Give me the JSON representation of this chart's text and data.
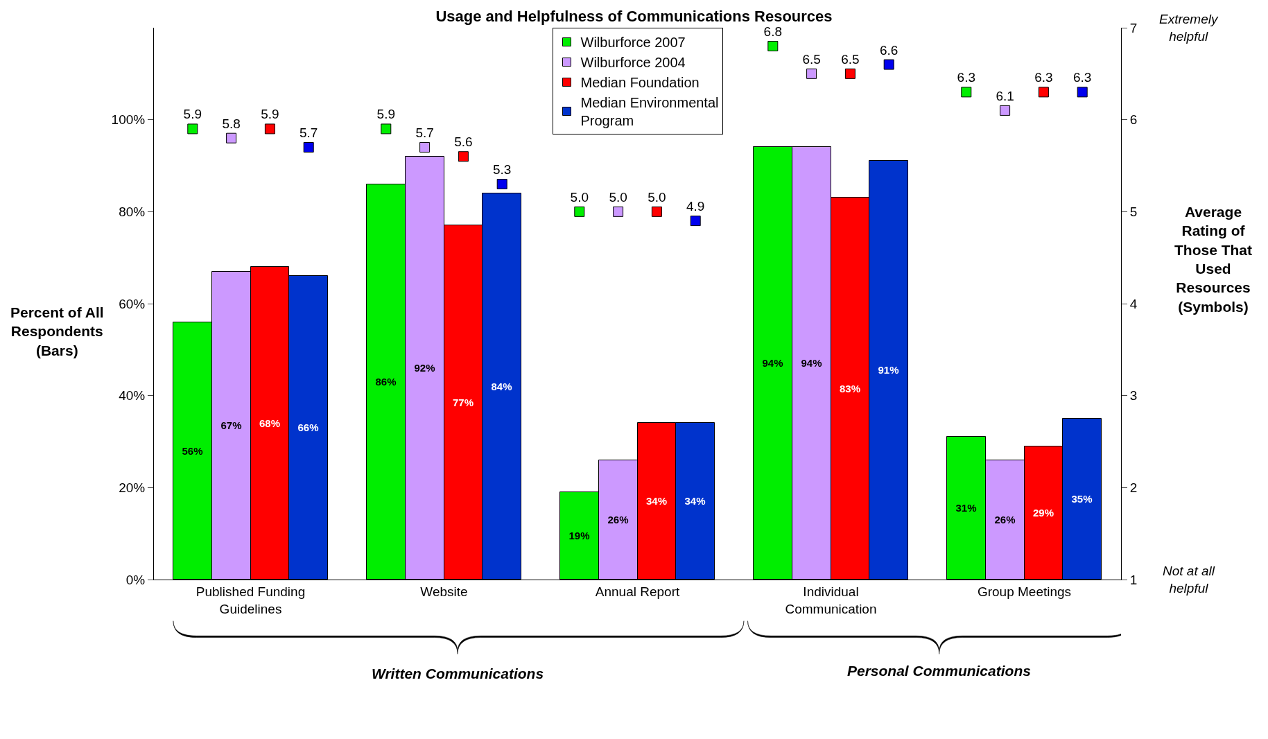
{
  "chart_data": {
    "type": "bar",
    "title": "Usage and Helpfulness of Communications Resources",
    "categories": [
      "Published Funding Guidelines",
      "Website",
      "Annual Report",
      "Individual Communication",
      "Group Meetings"
    ],
    "ylabel": "Percent of All Respondents (Bars)",
    "y2label": "Average Rating of Those That Used Resources (Symbols)",
    "ylim": [
      0,
      120
    ],
    "yticks": [
      {
        "value": 0,
        "label": "0%"
      },
      {
        "value": 20,
        "label": "20%"
      },
      {
        "value": 40,
        "label": "40%"
      },
      {
        "value": 60,
        "label": "60%"
      },
      {
        "value": 80,
        "label": "80%"
      },
      {
        "value": 100,
        "label": "100%"
      }
    ],
    "y2lim": [
      1,
      7
    ],
    "y2ticks": [
      1,
      2,
      3,
      4,
      5,
      6,
      7
    ],
    "legend": "top",
    "series": [
      {
        "name": "Wilburforce 2007",
        "color": "#00ee00",
        "values": [
          56,
          86,
          19,
          94,
          31
        ],
        "value_labels": [
          "56%",
          "86%",
          "19%",
          "94%",
          "31%"
        ]
      },
      {
        "name": "Wilburforce 2004",
        "color": "#cc99ff",
        "values": [
          67,
          92,
          26,
          94,
          26
        ],
        "value_labels": [
          "67%",
          "92%",
          "26%",
          "94%",
          "26%"
        ]
      },
      {
        "name": "Median Foundation",
        "color": "#ff0000",
        "values": [
          68,
          77,
          34,
          83,
          29
        ],
        "value_labels": [
          "68%",
          "77%",
          "34%",
          "83%",
          "29%"
        ]
      },
      {
        "name": "Median Environmental Program",
        "color": "#0033cc",
        "values": [
          66,
          84,
          34,
          91,
          35
        ],
        "value_labels": [
          "66%",
          "84%",
          "34%",
          "91%",
          "35%"
        ]
      },
      {
        "type": "scatter",
        "axis": "y2",
        "marker": "square",
        "color": "#00ee00",
        "values": [
          5.9,
          5.9,
          5.0,
          6.8,
          6.3
        ],
        "value_labels": [
          "5.9",
          "5.9",
          "5.0",
          "6.8",
          "6.3"
        ]
      },
      {
        "type": "scatter",
        "axis": "y2",
        "marker": "square",
        "color": "#cc99ff",
        "values": [
          5.8,
          5.7,
          5.0,
          6.5,
          6.1
        ],
        "value_labels": [
          "5.8",
          "5.7",
          "5.0",
          "6.5",
          "6.1"
        ]
      },
      {
        "type": "scatter",
        "axis": "y2",
        "marker": "square",
        "color": "#ff0000",
        "values": [
          5.9,
          5.6,
          5.0,
          6.5,
          6.3
        ],
        "value_labels": [
          "5.9",
          "5.6",
          "5.0",
          "6.5",
          "6.3"
        ]
      },
      {
        "type": "scatter",
        "axis": "y2",
        "marker": "square",
        "color": "#0000ee",
        "values": [
          5.7,
          5.3,
          4.9,
          6.6,
          6.3
        ],
        "value_labels": [
          "5.7",
          "5.3",
          "4.9",
          "6.6",
          "6.3"
        ]
      }
    ],
    "annotations": [
      "Extremely helpful",
      "Not at all helpful",
      "Written Communications",
      "Personal Communications"
    ]
  }
}
